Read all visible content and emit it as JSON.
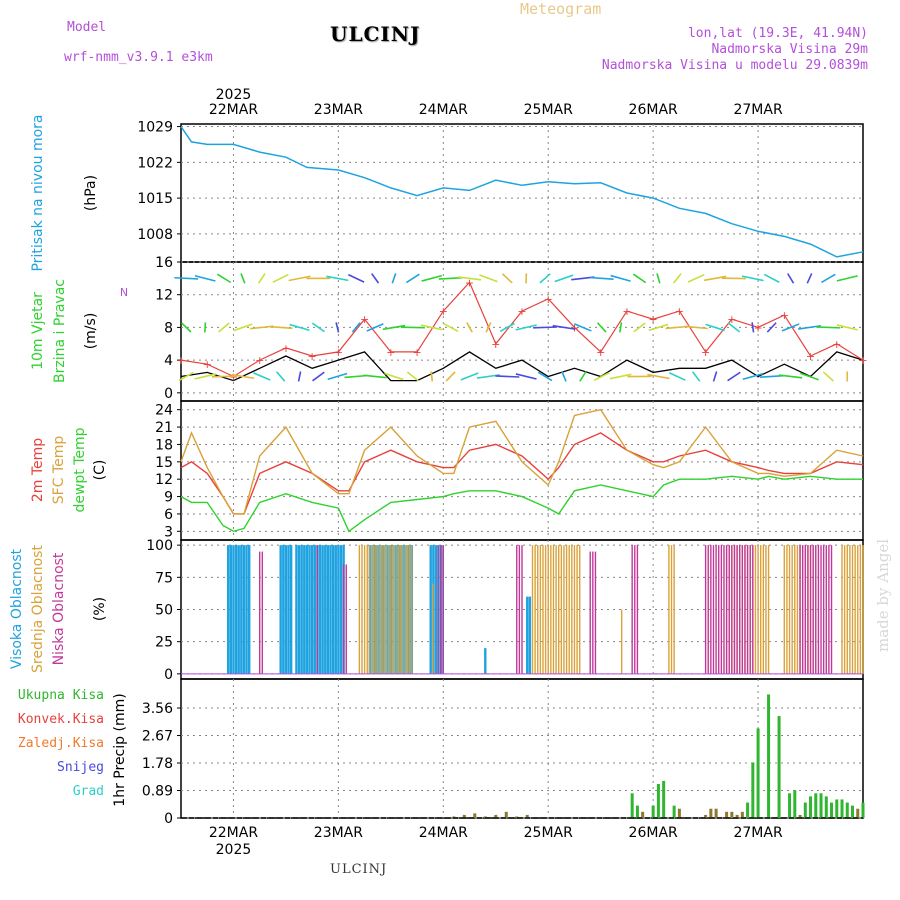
{
  "header": {
    "model_label": "Model",
    "model_name": "wrf-nmm_v3.9.1 e3km",
    "title": "ULCINJ",
    "subtitle": "Meteogram",
    "coords": "lon,lat (19.3E, 41.94N)",
    "altitude": "Nadmorska Visina 29m",
    "model_altitude": "Nadmorska Visina u modelu 29.0839m",
    "footer": "ULCINJ",
    "watermark": "made by Angel"
  },
  "colors": {
    "pressure": "#1fa3e0",
    "temp2m": "#e8413c",
    "sfc_temp": "#d9a23a",
    "dewpt": "#2fd22f",
    "wind_obs": "#e8413c",
    "wind_speed": "#000000",
    "high_cloud": "#1fa3e0",
    "mid_cloud": "#d9a23a",
    "low_cloud": "#c0399a",
    "total_precip": "#2fb52f",
    "conv_precip": "#e8413c",
    "frozen": "#f07a2a",
    "snow": "#4a4ae0",
    "grad": "#2bd0c8"
  },
  "chart_data": [
    {
      "type": "line",
      "panel": "pressure",
      "ylabel_line1": "Pritisak na nivou mora",
      "ylabel_line2": "(hPa)",
      "yticks": [
        "1029",
        "1022",
        "1015",
        "1008"
      ],
      "ylim": [
        1002.5,
        1029.5
      ],
      "x_days": [
        0,
        0.1,
        0.25,
        0.5,
        0.75,
        1.0,
        1.2,
        1.5,
        1.75,
        2.0,
        2.25,
        2.5,
        2.75,
        3.0,
        3.25,
        3.5,
        3.75,
        4.0,
        4.25,
        4.5,
        4.75,
        5.0,
        5.25,
        5.5,
        5.75,
        6.0,
        6.25,
        6.5
      ],
      "values": [
        1029,
        1026,
        1025.5,
        1025.5,
        1024,
        1023,
        1021,
        1020.5,
        1019,
        1017,
        1015.5,
        1017,
        1016.5,
        1018.5,
        1017.5,
        1018.2,
        1017.8,
        1018,
        1016,
        1015,
        1013,
        1012,
        1010,
        1008.5,
        1007.5,
        1006,
        1003.5,
        1004.5
      ],
      "grid": true
    },
    {
      "type": "line",
      "panel": "wind",
      "ylabel_line1": "10m Vjetar",
      "ylabel_line2": "Brzina i Pravac",
      "ylabel_line3": "(m/s)",
      "compass": "N",
      "yticks": [
        "16",
        "12",
        "8",
        "4",
        "0"
      ],
      "ylim": [
        -1,
        16
      ],
      "x_days": [
        0,
        0.25,
        0.5,
        0.75,
        1.0,
        1.25,
        1.5,
        1.75,
        2.0,
        2.25,
        2.5,
        2.75,
        3.0,
        3.25,
        3.5,
        3.75,
        4.0,
        4.25,
        4.5,
        4.75,
        5.0,
        5.25,
        5.5,
        5.75,
        6.0,
        6.25,
        6.5
      ],
      "series": [
        {
          "role": "speed",
          "values": [
            2,
            2.5,
            1.5,
            3,
            4.5,
            3,
            4,
            5,
            1.5,
            1.5,
            3,
            5,
            3,
            4,
            2,
            3,
            2,
            4,
            2.5,
            3,
            3,
            4,
            2,
            3.5,
            2,
            5,
            4
          ]
        },
        {
          "role": "gust",
          "values": [
            4,
            3.5,
            2,
            4,
            5.5,
            4.5,
            5,
            9,
            5,
            5,
            10,
            13.5,
            6,
            10,
            11.5,
            8,
            5,
            10,
            9,
            10,
            5,
            9,
            8,
            9.5,
            4.5,
            6,
            4
          ]
        }
      ],
      "grid": true
    },
    {
      "type": "line",
      "panel": "temperature",
      "ylabel_line1": "2m Temp",
      "ylabel_line2": "SFC Temp",
      "ylabel_line3": "dewpt Temp",
      "ylabel_line4": "(C)",
      "yticks": [
        "24",
        "21",
        "18",
        "15",
        "12",
        "9",
        "6",
        "3"
      ],
      "ylim": [
        1.5,
        25.5
      ],
      "x_days": [
        0,
        0.1,
        0.25,
        0.4,
        0.5,
        0.6,
        0.75,
        1.0,
        1.25,
        1.5,
        1.6,
        1.75,
        2.0,
        2.25,
        2.5,
        2.6,
        2.75,
        3.0,
        3.25,
        3.5,
        3.6,
        3.75,
        4.0,
        4.25,
        4.5,
        4.6,
        4.75,
        5.0,
        5.25,
        5.5,
        5.6,
        5.75,
        6.0,
        6.25,
        6.5
      ],
      "series": [
        {
          "name": "2m Temp",
          "values": [
            14,
            15,
            13,
            9,
            6,
            6,
            13,
            15,
            13,
            10,
            10,
            15,
            17,
            15,
            14,
            14,
            17,
            18,
            16,
            12,
            14,
            18,
            20,
            17,
            15,
            15,
            16,
            17,
            15,
            14,
            13.5,
            13,
            13,
            15,
            14.5
          ]
        },
        {
          "name": "SFC Temp",
          "values": [
            15,
            20,
            14,
            9,
            6,
            6,
            16,
            21,
            13,
            9.5,
            9.5,
            17,
            21,
            16,
            13,
            13,
            21,
            22,
            15,
            11,
            15,
            23,
            24,
            17,
            14.5,
            14,
            15,
            21,
            15,
            13,
            13,
            12.5,
            13,
            17,
            16
          ]
        },
        {
          "name": "dewpt Temp",
          "values": [
            9,
            8,
            8,
            4,
            3,
            3.5,
            8,
            9.5,
            8,
            7,
            3,
            5,
            8,
            8.5,
            9,
            9.5,
            10,
            10,
            9,
            7,
            6,
            10,
            11,
            10,
            9,
            11,
            12,
            12,
            12.5,
            12,
            12.5,
            12,
            12.5,
            12,
            12
          ]
        }
      ],
      "grid": true
    },
    {
      "type": "bar",
      "panel": "cloud",
      "ylabel_line1": "Visoka Oblacnost",
      "ylabel_line2": "Srednja Oblacnost",
      "ylabel_line3": "Niska Oblacnost",
      "ylabel_line4": "(%)",
      "yticks": [
        "100",
        "75",
        "50",
        "25",
        "0"
      ],
      "ylim": [
        -4,
        104
      ],
      "series": [
        {
          "name": "Visoka Oblacnost",
          "segments": [
            [
              0.45,
              0.65,
              100
            ],
            [
              0.95,
              1.05,
              100
            ],
            [
              1.1,
              1.55,
              100
            ],
            [
              1.8,
              2.2,
              100
            ],
            [
              2.38,
              2.48,
              100
            ],
            [
              2.9,
              2.92,
              20
            ],
            [
              3.3,
              3.34,
              60
            ]
          ]
        },
        {
          "name": "Srednja Oblacnost",
          "segments": [
            [
              1.7,
              2.2,
              100
            ],
            [
              2.4,
              2.42,
              70
            ],
            [
              3.35,
              3.8,
              100
            ],
            [
              4.2,
              4.22,
              50
            ],
            [
              4.65,
              4.7,
              100
            ],
            [
              5.2,
              5.6,
              100
            ],
            [
              5.75,
              6.05,
              100
            ],
            [
              6.3,
              6.5,
              100
            ]
          ]
        },
        {
          "name": "Niska Oblacnost",
          "segments": [
            [
              0.75,
              0.78,
              95
            ],
            [
              1.3,
              1.32,
              100
            ],
            [
              1.55,
              1.58,
              85
            ],
            [
              2.45,
              2.5,
              100
            ],
            [
              3.2,
              3.25,
              100
            ],
            [
              3.9,
              3.95,
              95
            ],
            [
              4.3,
              4.35,
              100
            ],
            [
              5.0,
              5.45,
              100
            ],
            [
              5.9,
              6.2,
              100
            ]
          ]
        }
      ],
      "grid": true
    },
    {
      "type": "bar",
      "panel": "precip",
      "ylabel_lines": [
        "Ukupna Kisa",
        "Konvek.Kisa",
        "Zaledj.Kisa",
        "Snijeg",
        "Grad"
      ],
      "ylabel_axis": "1hr Precip (mm)",
      "yticks": [
        "3.56",
        "2.67",
        "1.78",
        "0.89",
        "0"
      ],
      "ylim": [
        0,
        4.5
      ],
      "x_days": [
        2.6,
        2.7,
        2.8,
        2.9,
        3.0,
        3.1,
        3.2,
        3.3,
        4.3,
        4.35,
        4.4,
        4.5,
        4.55,
        4.6,
        4.7,
        4.75,
        5.0,
        5.05,
        5.1,
        5.2,
        5.25,
        5.3,
        5.35,
        5.4,
        5.45,
        5.5,
        5.6,
        5.7,
        5.8,
        5.85,
        5.9,
        5.95,
        6.0,
        6.05,
        6.1,
        6.15,
        6.2,
        6.25,
        6.3,
        6.35,
        6.4,
        6.45,
        6.5
      ],
      "values": [
        0.05,
        0.1,
        0.15,
        0.05,
        0.1,
        0.2,
        0.05,
        0.1,
        0.8,
        0.4,
        0.2,
        0.4,
        1.1,
        1.2,
        0.4,
        0.3,
        0.1,
        0.3,
        0.3,
        0.2,
        0.2,
        0.1,
        0.2,
        0.5,
        1.8,
        2.9,
        4.0,
        3.3,
        0.8,
        0.9,
        0.1,
        0.5,
        0.7,
        0.8,
        0.8,
        0.7,
        0.5,
        0.6,
        0.6,
        0.5,
        0.4,
        0.3,
        0.5
      ],
      "grid": true
    }
  ],
  "x_axis": {
    "year": "2025",
    "ticks": [
      "22MAR",
      "23MAR",
      "24MAR",
      "25MAR",
      "26MAR",
      "27MAR"
    ],
    "tick_days": [
      0.5,
      1.5,
      2.5,
      3.5,
      4.5,
      5.5
    ],
    "xlim": [
      0,
      6.5
    ]
  }
}
